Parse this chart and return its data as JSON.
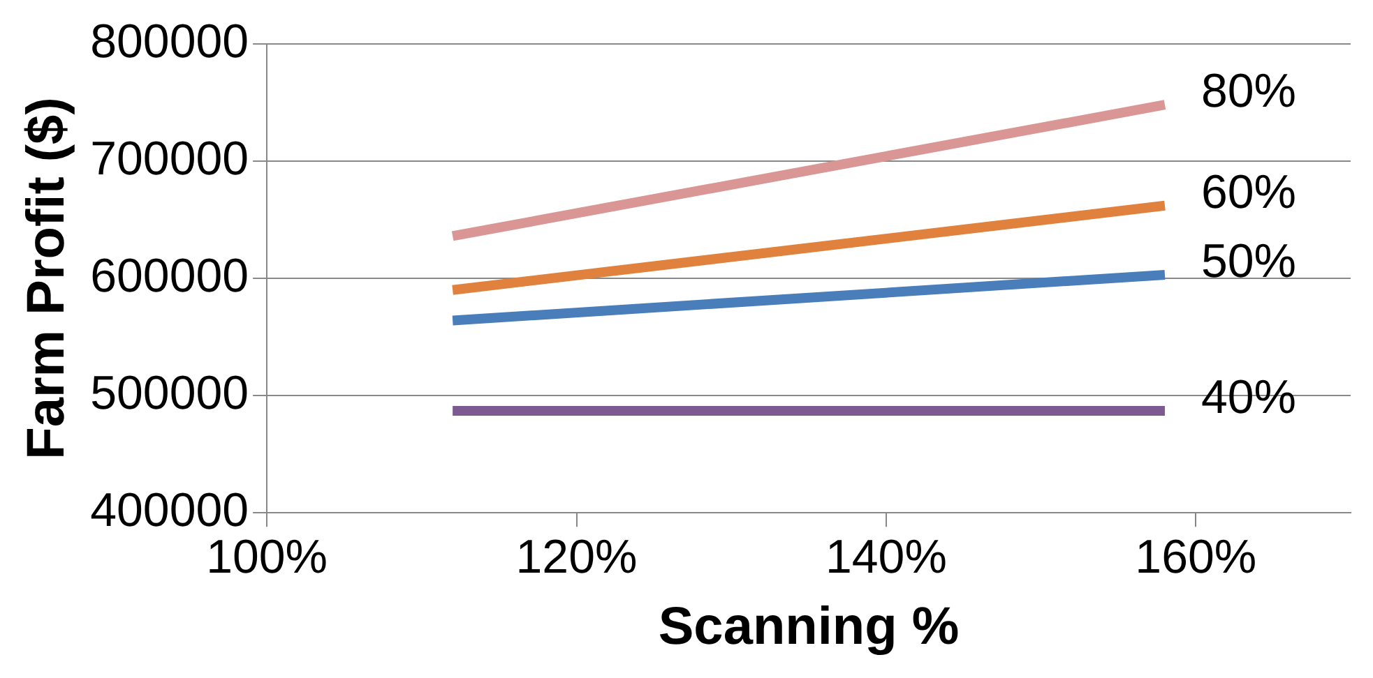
{
  "chart_data": {
    "type": "line",
    "xlabel": "Scanning %",
    "ylabel": "Farm Profit ($)",
    "xlim": [
      100,
      170
    ],
    "xticks": [
      {
        "value": 100,
        "label": "100%"
      },
      {
        "value": 120,
        "label": "120%"
      },
      {
        "value": 140,
        "label": "140%"
      },
      {
        "value": 160,
        "label": "160%"
      }
    ],
    "x": [
      112,
      158
    ],
    "ylim": [
      400000,
      800000
    ],
    "yticks": [
      400000,
      500000,
      600000,
      700000,
      800000
    ],
    "grid": "y",
    "legend": false,
    "marker": "none",
    "line_style": "solid",
    "series": [
      {
        "name": "80%",
        "color": "#d99694",
        "values": [
          636000,
          748000
        ]
      },
      {
        "name": "60%",
        "color": "#e0823d",
        "values": [
          590000,
          662000
        ]
      },
      {
        "name": "50%",
        "color": "#4a7ebb",
        "values": [
          564000,
          603000
        ]
      },
      {
        "name": "40%",
        "color": "#7d5a92",
        "values": [
          487000,
          487000
        ]
      }
    ]
  }
}
